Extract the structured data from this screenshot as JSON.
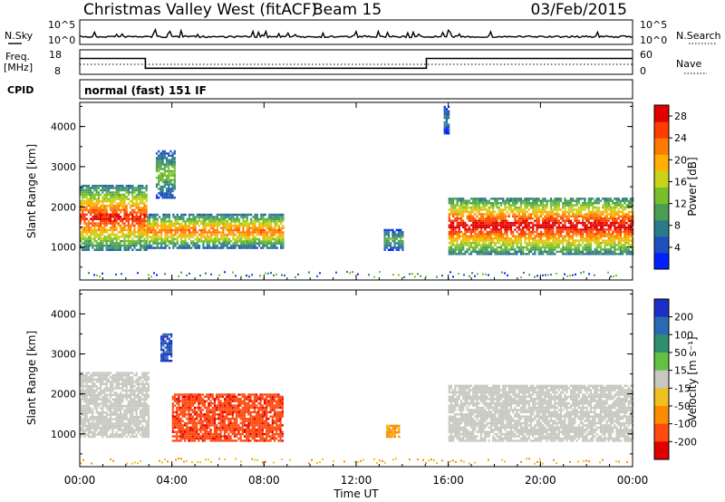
{
  "header": {
    "station": "Christmas Valley West (fitACF)",
    "beam": "Beam 15",
    "date": "03/Feb/2015"
  },
  "noise_panel": {
    "left_label": "N.Sky",
    "right_label": "N.Search",
    "tick_top": "10^5",
    "tick_bottom": "10^0"
  },
  "freq_panel": {
    "left_label_line1": "Freq.",
    "left_label_line2": "[MHz]",
    "right_label": "Nave",
    "left_ticks": [
      "18",
      "8"
    ],
    "right_ticks": [
      "60",
      "0"
    ]
  },
  "cpid_panel": {
    "label": "CPID",
    "mode": "normal (fast) 151 IF"
  },
  "axes": {
    "ylabel": "Slant Range [km]",
    "xlabel": "Time UT",
    "yticks": [
      "1000",
      "2000",
      "3000",
      "4000"
    ],
    "xticks": [
      "00:00",
      "04:00",
      "08:00",
      "12:00",
      "16:00",
      "20:00",
      "00:00"
    ]
  },
  "power_colorbar": {
    "label": "Power [dB]",
    "ticks": [
      "4",
      "8",
      "12",
      "16",
      "20",
      "24",
      "28"
    ],
    "colors": [
      "#0020ff",
      "#1e4fbe",
      "#2a7b8a",
      "#4a9e52",
      "#78c02a",
      "#c9d31a",
      "#ffb000",
      "#ff7a00",
      "#ff3c00",
      "#e00000"
    ]
  },
  "velocity_colorbar": {
    "label": "Velocity [m s⁻¹]",
    "ticks": [
      "200",
      "100",
      "50",
      "15",
      "-15",
      "-50",
      "-100",
      "-200"
    ],
    "colors": [
      "#1a2fc8",
      "#2a6ab0",
      "#2e8f6e",
      "#62c044",
      "#c8c8c0",
      "#f0c020",
      "#ff8c00",
      "#ff4a10",
      "#e00000"
    ]
  },
  "chart_data": [
    {
      "type": "line",
      "title": "N.Sky / N.Search",
      "x_range_hours": [
        0,
        24
      ],
      "y_scale": "log",
      "ylim": [
        1,
        100000
      ]
    },
    {
      "type": "line",
      "title": "Freq. [MHz] / Nave",
      "x_range_hours": [
        0,
        24
      ],
      "ylim_left": [
        8,
        18
      ],
      "ylim_right": [
        0,
        60
      ],
      "freq_steps_mhz": [
        {
          "t_start": 0,
          "t_end": 2.85,
          "value": 14.5
        },
        {
          "t_start": 2.85,
          "t_end": 15.05,
          "value": 10.5
        },
        {
          "t_start": 15.05,
          "t_end": 24,
          "value": 14.5
        }
      ]
    },
    {
      "type": "heatmap",
      "title": "Power [dB]",
      "x_range_hours": [
        0,
        24
      ],
      "ylim_km": [
        180,
        4600
      ],
      "zlim": [
        0,
        30
      ],
      "regions": [
        {
          "t0": 0.0,
          "t1": 2.9,
          "r_low": 900,
          "r_high": 2500,
          "peak_db": 28
        },
        {
          "t0": 2.9,
          "t1": 8.8,
          "r_low": 950,
          "r_high": 1800,
          "peak_db": 24
        },
        {
          "t0": 3.3,
          "t1": 4.1,
          "r_low": 2200,
          "r_high": 3400,
          "peak_db": 14
        },
        {
          "t0": 13.2,
          "t1": 14.0,
          "r_low": 900,
          "r_high": 1400,
          "peak_db": 12
        },
        {
          "t0": 15.8,
          "t1": 16.0,
          "r_low": 3800,
          "r_high": 4500,
          "peak_db": 8
        },
        {
          "t0": 16.0,
          "t1": 24.0,
          "r_low": 800,
          "r_high": 2200,
          "peak_db": 30
        }
      ]
    },
    {
      "type": "heatmap",
      "title": "Velocity [m s⁻¹]",
      "x_range_hours": [
        0,
        24
      ],
      "ylim_km": [
        180,
        4600
      ],
      "zlim": [
        -250,
        250
      ],
      "regions": [
        {
          "t0": 0.0,
          "t1": 3.0,
          "r_low": 900,
          "r_high": 2500,
          "v": 0
        },
        {
          "t0": 3.5,
          "t1": 4.0,
          "r_low": 2800,
          "r_high": 3500,
          "v": 200
        },
        {
          "t0": 4.0,
          "t1": 8.8,
          "r_low": 800,
          "r_high": 2000,
          "v": -180
        },
        {
          "t0": 13.3,
          "t1": 13.9,
          "r_low": 900,
          "r_high": 1200,
          "v": -60
        },
        {
          "t0": 16.0,
          "t1": 24.0,
          "r_low": 800,
          "r_high": 2200,
          "v": 0
        }
      ]
    }
  ]
}
